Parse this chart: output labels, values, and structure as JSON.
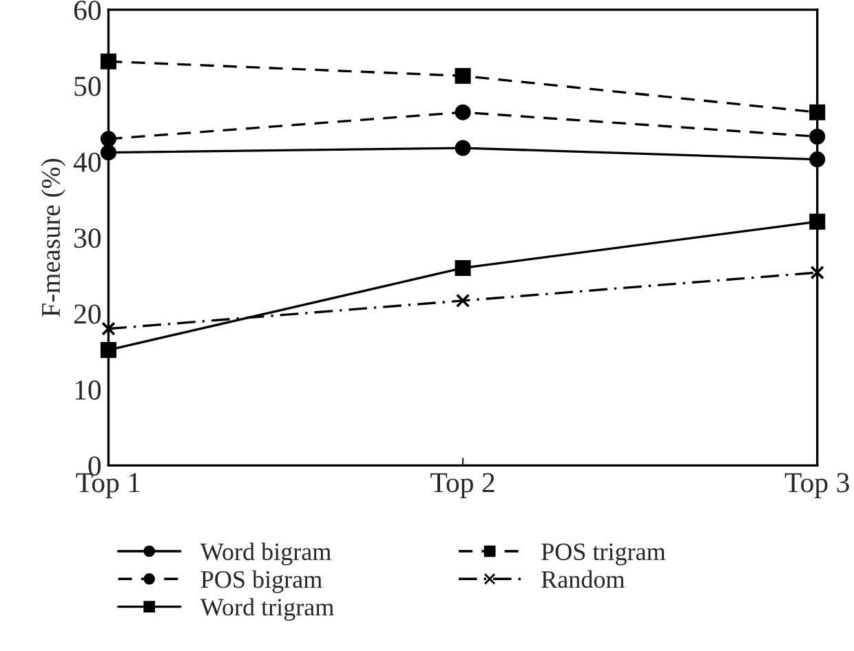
{
  "chart_data": {
    "type": "line",
    "categories": [
      "Top 1",
      "Top 2",
      "Top 3"
    ],
    "ylabel": "F-measure (%)",
    "ylim": [
      0,
      60
    ],
    "yticks": [
      0,
      10,
      20,
      30,
      40,
      50,
      60
    ],
    "grid": false,
    "legend": "bottom",
    "series": [
      {
        "name": "Word bigram",
        "color": "#000000",
        "marker": "circle",
        "line_style": "solid",
        "values": [
          41.2,
          41.8,
          40.3
        ]
      },
      {
        "name": "POS bigram",
        "color": "#000000",
        "marker": "circle",
        "line_style": "dashed",
        "values": [
          43.0,
          46.5,
          43.3
        ]
      },
      {
        "name": "Word trigram",
        "color": "#000000",
        "marker": "square",
        "line_style": "solid",
        "values": [
          15.2,
          26.0,
          32.1
        ]
      },
      {
        "name": "POS trigram",
        "color": "#000000",
        "marker": "square",
        "line_style": "dashed",
        "values": [
          53.2,
          51.3,
          46.5
        ]
      },
      {
        "name": "Random",
        "color": "#000000",
        "marker": "cross",
        "line_style": "dashdot",
        "values": [
          18.0,
          21.7,
          25.4
        ]
      }
    ]
  }
}
